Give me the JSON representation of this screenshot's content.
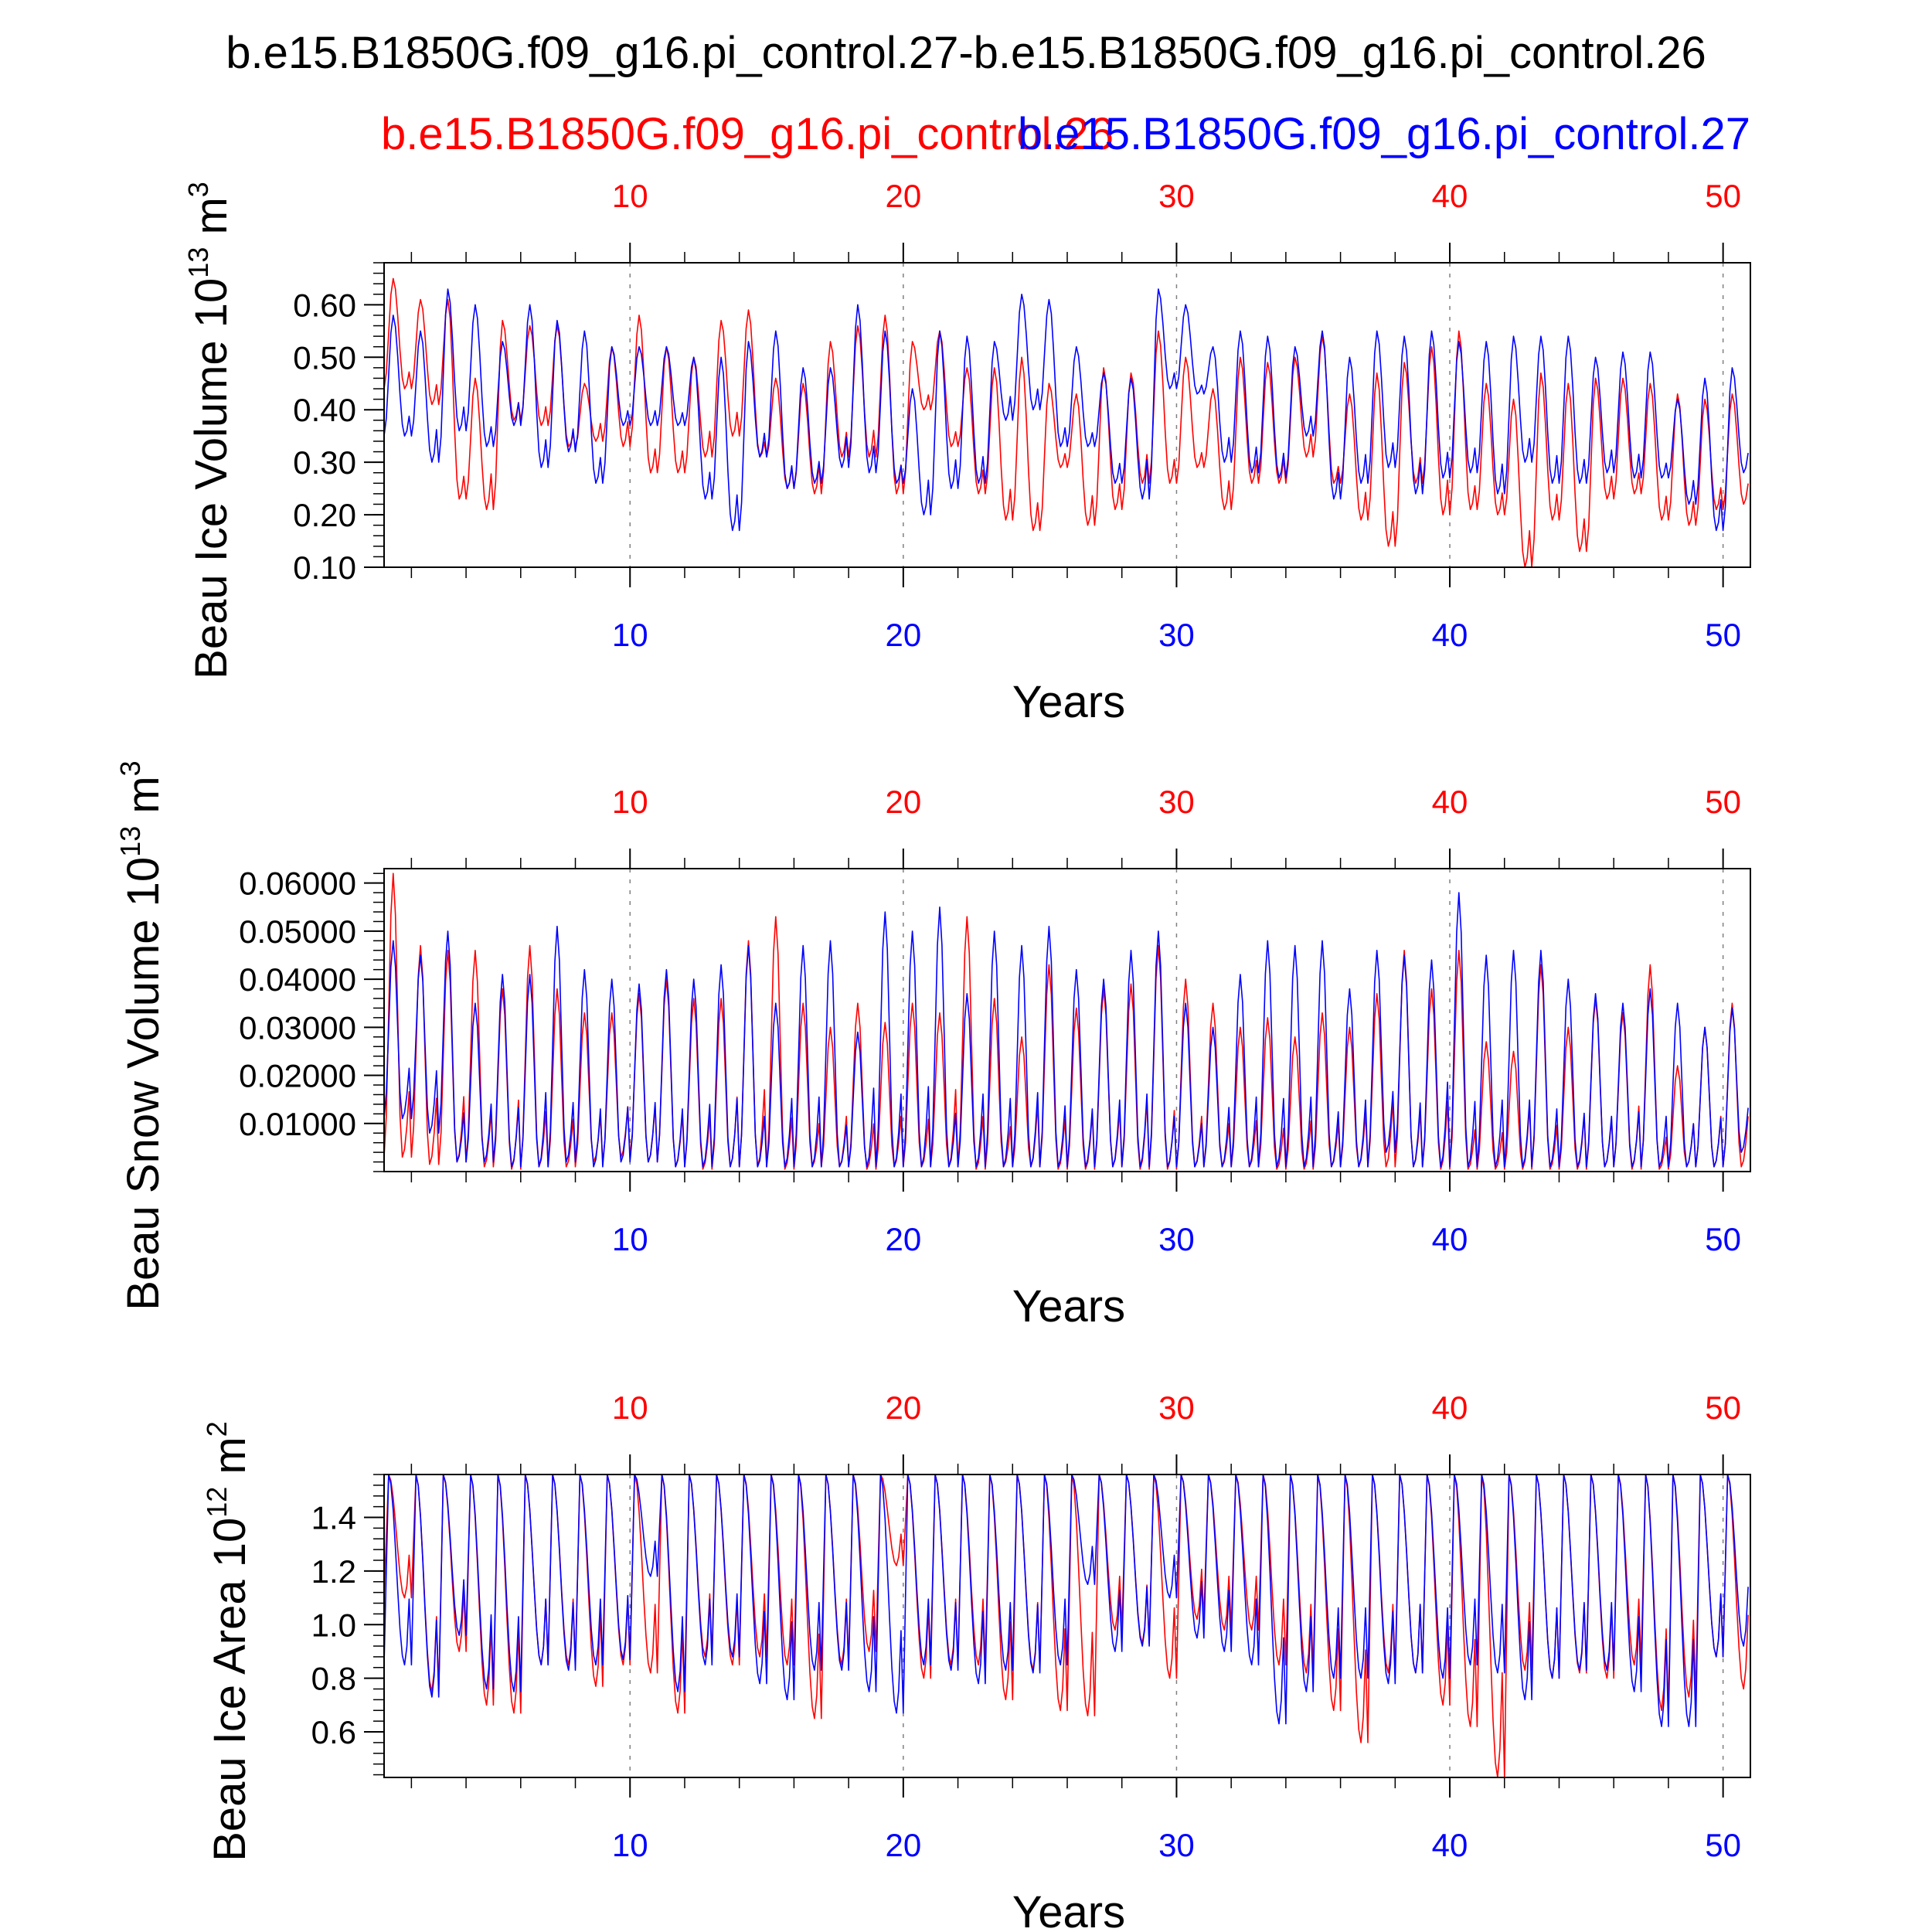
{
  "title": "b.e15.B1850G.f09_g16.pi_control.27-b.e15.B1850G.f09_g16.pi_control.26",
  "legend": {
    "red_label": "b.e15.B1850G.f09_g16.pi_control.26",
    "blue_label": "b.e15.B1850G.f09_g16.pi_control.27"
  },
  "colors": {
    "red": "#ff0000",
    "blue": "#0000ff",
    "axis": "#000000",
    "grid": "#808080"
  },
  "chart_data": [
    {
      "type": "line",
      "name": "ice-volume",
      "ylabel_main": "Beau Ice Volume 10",
      "ylabel_exp": "13",
      "ylabel_unit": " m",
      "ylabel_unit_exp": "3",
      "xlabel": "Years",
      "xlim": [
        1,
        51
      ],
      "ylim": [
        0.1,
        0.68
      ],
      "yticks": [
        0.1,
        0.2,
        0.3,
        0.4,
        0.5,
        0.6
      ],
      "ytick_labels": [
        "0.10",
        "0.20",
        "0.30",
        "0.40",
        "0.50",
        "0.60"
      ],
      "xticks": [
        10,
        20,
        30,
        40,
        50
      ],
      "xtick_labels": [
        "10",
        "20",
        "30",
        "40",
        "50"
      ],
      "series": [
        {
          "name": "b.e15.B1850G.f09_g16.pi_control.26",
          "color": "red",
          "peak_month": 4,
          "trough_month": 9,
          "winter_max": [
            0.65,
            0.61,
            0.61,
            0.46,
            0.57,
            0.56,
            0.56,
            0.45,
            0.52,
            0.58,
            0.52,
            0.5,
            0.57,
            0.59,
            0.46,
            0.45,
            0.53,
            0.56,
            0.58,
            0.53,
            0.55,
            0.48,
            0.48,
            0.5,
            0.45,
            0.43,
            0.48,
            0.47,
            0.55,
            0.5,
            0.44,
            0.5,
            0.49,
            0.5,
            0.54,
            0.43,
            0.47,
            0.49,
            0.52,
            0.55,
            0.45,
            0.42,
            0.47,
            0.45,
            0.46,
            0.46,
            0.45,
            0.43,
            0.42,
            0.43
          ],
          "summer_min": [
            0.44,
            0.41,
            0.23,
            0.21,
            0.38,
            0.37,
            0.33,
            0.34,
            0.33,
            0.28,
            0.28,
            0.31,
            0.35,
            0.31,
            0.25,
            0.24,
            0.31,
            0.31,
            0.24,
            0.4,
            0.33,
            0.24,
            0.19,
            0.17,
            0.29,
            0.18,
            0.21,
            0.26,
            0.26,
            0.29,
            0.21,
            0.26,
            0.26,
            0.31,
            0.26,
            0.19,
            0.14,
            0.26,
            0.2,
            0.21,
            0.2,
            0.1,
            0.19,
            0.13,
            0.23,
            0.24,
            0.19,
            0.18,
            0.21,
            0.22
          ]
        },
        {
          "name": "b.e15.B1850G.f09_g16.pi_control.27",
          "color": "blue",
          "peak_month": 4,
          "trough_month": 9,
          "winter_max": [
            0.58,
            0.55,
            0.63,
            0.6,
            0.53,
            0.6,
            0.57,
            0.55,
            0.52,
            0.52,
            0.52,
            0.5,
            0.5,
            0.53,
            0.55,
            0.48,
            0.48,
            0.6,
            0.55,
            0.44,
            0.55,
            0.54,
            0.53,
            0.62,
            0.61,
            0.52,
            0.47,
            0.46,
            0.63,
            0.6,
            0.52,
            0.55,
            0.54,
            0.52,
            0.55,
            0.5,
            0.55,
            0.54,
            0.55,
            0.53,
            0.53,
            0.54,
            0.54,
            0.54,
            0.5,
            0.51,
            0.51,
            0.42,
            0.46,
            0.48
          ],
          "summer_min": [
            0.35,
            0.3,
            0.36,
            0.33,
            0.37,
            0.29,
            0.32,
            0.26,
            0.37,
            0.37,
            0.37,
            0.23,
            0.17,
            0.31,
            0.25,
            0.26,
            0.29,
            0.28,
            0.26,
            0.2,
            0.25,
            0.26,
            0.38,
            0.4,
            0.33,
            0.33,
            0.26,
            0.23,
            0.44,
            0.43,
            0.3,
            0.28,
            0.27,
            0.35,
            0.23,
            0.26,
            0.29,
            0.24,
            0.27,
            0.28,
            0.24,
            0.3,
            0.26,
            0.26,
            0.28,
            0.27,
            0.27,
            0.22,
            0.17,
            0.28
          ]
        }
      ]
    },
    {
      "type": "line",
      "name": "snow-volume",
      "ylabel_main": "Beau Snow Volume 10",
      "ylabel_exp": "13",
      "ylabel_unit": " m",
      "ylabel_unit_exp": "3",
      "xlabel": "Years",
      "xlim": [
        1,
        51
      ],
      "ylim": [
        0.0,
        0.063
      ],
      "yticks": [
        0.01,
        0.02,
        0.03,
        0.04,
        0.05,
        0.06
      ],
      "ytick_labels": [
        "0.01000",
        "0.02000",
        "0.03000",
        "0.04000",
        "0.05000",
        "0.06000"
      ],
      "xticks": [
        10,
        20,
        30,
        40,
        50
      ],
      "xtick_labels": [
        "10",
        "20",
        "30",
        "40",
        "50"
      ],
      "series": [
        {
          "name": "b.e15.B1850G.f09_g16.pi_control.26",
          "color": "red",
          "peak_month": 4,
          "trough_month": 8,
          "winter_max": [
            0.062,
            0.047,
            0.046,
            0.046,
            0.038,
            0.047,
            0.038,
            0.033,
            0.033,
            0.037,
            0.04,
            0.036,
            0.036,
            0.048,
            0.053,
            0.035,
            0.03,
            0.035,
            0.031,
            0.035,
            0.033,
            0.053,
            0.036,
            0.028,
            0.043,
            0.034,
            0.038,
            0.039,
            0.047,
            0.04,
            0.035,
            0.03,
            0.032,
            0.028,
            0.033,
            0.03,
            0.037,
            0.046,
            0.038,
            0.046,
            0.027,
            0.025,
            0.043,
            0.03,
            0.036,
            0.033,
            0.043,
            0.022,
            0.03,
            0.035
          ],
          "summer_min": [
            0.003,
            0.0015,
            0.002,
            0.001,
            0.0005,
            0.001,
            0.001,
            0.002,
            0.003,
            0.002,
            0.001,
            0.0005,
            0.001,
            0.001,
            0.0005,
            0.001,
            0.001,
            0.0005,
            0.001,
            0.001,
            0.001,
            0.0005,
            0.001,
            0.001,
            0.0005,
            0.0005,
            0.001,
            0.0005,
            0.0005,
            0.001,
            0.001,
            0.001,
            0.0005,
            0.0005,
            0.001,
            0.001,
            0.001,
            0.001,
            0.0005,
            0.0005,
            0.0005,
            0.0005,
            0.0005,
            0.0005,
            0.001,
            0.0005,
            0.0005,
            0.001,
            0.001,
            0.001
          ]
        },
        {
          "name": "b.e15.B1850G.f09_g16.pi_control.27",
          "color": "blue",
          "peak_month": 4,
          "trough_month": 8,
          "winter_max": [
            0.048,
            0.045,
            0.05,
            0.035,
            0.041,
            0.041,
            0.051,
            0.042,
            0.04,
            0.039,
            0.042,
            0.04,
            0.043,
            0.047,
            0.035,
            0.047,
            0.048,
            0.029,
            0.054,
            0.05,
            0.055,
            0.037,
            0.05,
            0.047,
            0.051,
            0.042,
            0.04,
            0.046,
            0.05,
            0.035,
            0.03,
            0.041,
            0.048,
            0.047,
            0.048,
            0.038,
            0.046,
            0.045,
            0.044,
            0.058,
            0.045,
            0.046,
            0.046,
            0.04,
            0.037,
            0.035,
            0.038,
            0.035,
            0.03,
            0.034
          ],
          "summer_min": [
            0.011,
            0.008,
            0.002,
            0.002,
            0.001,
            0.001,
            0.002,
            0.001,
            0.002,
            0.002,
            0.001,
            0.001,
            0.001,
            0.001,
            0.001,
            0.001,
            0.001,
            0.001,
            0.001,
            0.001,
            0.001,
            0.001,
            0.001,
            0.001,
            0.001,
            0.001,
            0.001,
            0.001,
            0.001,
            0.001,
            0.001,
            0.001,
            0.001,
            0.001,
            0.001,
            0.001,
            0.004,
            0.001,
            0.001,
            0.001,
            0.001,
            0.001,
            0.001,
            0.001,
            0.001,
            0.001,
            0.001,
            0.001,
            0.001,
            0.004
          ]
        }
      ]
    },
    {
      "type": "line",
      "name": "ice-area",
      "ylabel_main": "Beau Ice Area 10",
      "ylabel_exp": "12",
      "ylabel_unit": " m",
      "ylabel_unit_exp": "2",
      "xlabel": "Years",
      "xlim": [
        1,
        51
      ],
      "ylim": [
        0.43,
        1.56
      ],
      "yticks": [
        0.6,
        0.8,
        1.0,
        1.2,
        1.4
      ],
      "ytick_labels": [
        "0.6",
        "0.8",
        "1.0",
        "1.2",
        "1.4"
      ],
      "xticks": [
        10,
        20,
        30,
        40,
        50
      ],
      "xtick_labels": [
        "10",
        "20",
        "30",
        "40",
        "50"
      ],
      "series": [
        {
          "name": "b.e15.B1850G.f09_g16.pi_control.26",
          "color": "red",
          "peak_month": 2,
          "trough_month": 9,
          "winter_max": [
            1.56,
            1.56,
            1.56,
            1.56,
            1.56,
            1.56,
            1.56,
            1.56,
            1.56,
            1.56,
            1.56,
            1.56,
            1.56,
            1.56,
            1.56,
            1.56,
            1.56,
            1.56,
            1.56,
            1.56,
            1.56,
            1.56,
            1.56,
            1.56,
            1.56,
            1.56,
            1.56,
            1.56,
            1.56,
            1.56,
            1.56,
            1.56,
            1.56,
            1.56,
            1.56,
            1.56,
            1.56,
            1.56,
            1.56,
            1.56,
            1.56,
            1.56,
            1.56,
            1.56,
            1.56,
            1.56,
            1.56,
            1.56,
            1.56,
            1.56
          ],
          "summer_min": [
            1.1,
            0.75,
            0.9,
            0.7,
            0.67,
            0.85,
            0.85,
            0.77,
            0.85,
            0.82,
            0.67,
            0.88,
            0.85,
            0.88,
            0.85,
            0.65,
            0.85,
            0.9,
            1.22,
            0.8,
            0.85,
            0.85,
            0.72,
            0.83,
            0.68,
            0.66,
            0.98,
            0.93,
            0.8,
            1.02,
            0.98,
            0.98,
            0.85,
            0.82,
            0.68,
            0.56,
            0.82,
            0.82,
            0.7,
            0.62,
            0.43,
            0.83,
            0.8,
            0.82,
            0.8,
            0.85,
            0.68,
            0.73,
            0.88,
            0.76
          ]
        },
        {
          "name": "b.e15.B1850G.f09_g16.pi_control.27",
          "color": "blue",
          "peak_month": 2,
          "trough_month": 9,
          "winter_max": [
            1.56,
            1.56,
            1.56,
            1.56,
            1.56,
            1.56,
            1.56,
            1.56,
            1.56,
            1.56,
            1.56,
            1.56,
            1.56,
            1.56,
            1.56,
            1.56,
            1.56,
            1.56,
            1.56,
            1.56,
            1.56,
            1.56,
            1.56,
            1.56,
            1.56,
            1.56,
            1.56,
            1.56,
            1.56,
            1.56,
            1.56,
            1.56,
            1.56,
            1.56,
            1.56,
            1.56,
            1.56,
            1.56,
            1.56,
            1.56,
            1.56,
            1.56,
            1.56,
            1.56,
            1.56,
            1.56,
            1.56,
            1.56,
            1.56,
            1.56
          ],
          "summer_min": [
            0.85,
            0.73,
            0.96,
            0.76,
            0.75,
            0.85,
            0.83,
            0.85,
            0.87,
            1.18,
            0.75,
            0.85,
            0.88,
            0.78,
            0.72,
            0.83,
            0.83,
            0.75,
            0.67,
            0.85,
            0.83,
            0.78,
            0.83,
            0.82,
            0.85,
            1.15,
            0.9,
            0.92,
            1.1,
            0.95,
            0.9,
            0.85,
            0.63,
            0.75,
            0.8,
            0.8,
            0.78,
            0.82,
            0.8,
            0.85,
            0.82,
            0.72,
            0.8,
            0.83,
            0.83,
            0.75,
            0.62,
            0.62,
            0.88,
            0.92
          ]
        }
      ]
    }
  ]
}
